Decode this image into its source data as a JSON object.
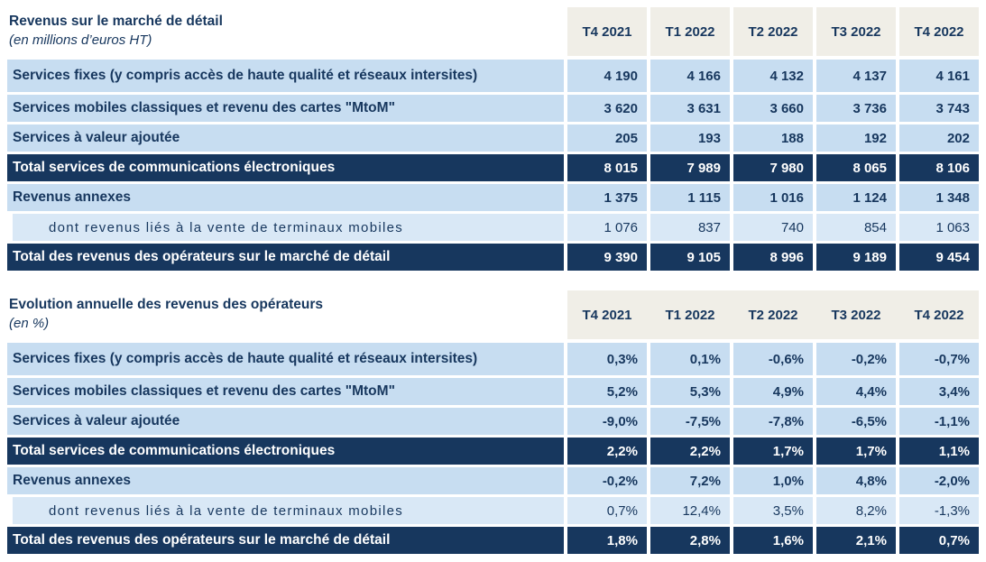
{
  "colors": {
    "navy": "#17375E",
    "row_blue": "#C7DDF1",
    "sub_row_blue": "#D9E8F6",
    "header_beige": "#F0EEE7",
    "total_row_text": "#FFFFFF"
  },
  "chart_data": [
    {
      "type": "table",
      "title": "Revenus sur le marché de détail",
      "subtitle": "(en millions d’euros HT)",
      "header_style": "split",
      "columns": [
        "T4 2021",
        "T1 2022",
        "T2 2022",
        "T3 2022",
        "T4 2022"
      ],
      "rows": [
        {
          "label": "Services fixes (y compris accès de haute qualité et réseaux intersites)",
          "style": "data",
          "values": [
            "4 190",
            "4 166",
            "4 132",
            "4 137",
            "4 161"
          ]
        },
        {
          "label": "Services mobiles classiques et revenu des cartes \"MtoM\"",
          "style": "data",
          "values": [
            "3 620",
            "3 631",
            "3 660",
            "3 736",
            "3 743"
          ]
        },
        {
          "label": "Services à valeur ajoutée",
          "style": "data",
          "values": [
            "205",
            "193",
            "188",
            "192",
            "202"
          ]
        },
        {
          "label": "Total services de communications électroniques",
          "style": "total",
          "values": [
            "8 015",
            "7 989",
            "7 980",
            "8 065",
            "8 106"
          ]
        },
        {
          "label": "Revenus annexes",
          "style": "data",
          "values": [
            "1 375",
            "1 115",
            "1 016",
            "1 124",
            "1 348"
          ]
        },
        {
          "label": "dont revenus liés à la vente de terminaux mobiles",
          "style": "sub",
          "values": [
            "1 076",
            "837",
            "740",
            "854",
            "1 063"
          ]
        },
        {
          "label": "Total des revenus des opérateurs sur le marché de détail",
          "style": "total",
          "values": [
            "9 390",
            "9 105",
            "8 996",
            "9 189",
            "9 454"
          ]
        }
      ]
    },
    {
      "type": "table",
      "title": "Evolution annuelle des revenus des opérateurs",
      "subtitle": "(en %)",
      "header_style": "joined",
      "columns": [
        "T4 2021",
        "T1 2022",
        "T2 2022",
        "T3 2022",
        "T4 2022"
      ],
      "rows": [
        {
          "label": "Services fixes (y compris accès de haute qualité et réseaux intersites)",
          "style": "data",
          "values": [
            "0,3%",
            "0,1%",
            "-0,6%",
            "-0,2%",
            "-0,7%"
          ]
        },
        {
          "label": "Services mobiles classiques et revenu des cartes \"MtoM\"",
          "style": "data",
          "values": [
            "5,2%",
            "5,3%",
            "4,9%",
            "4,4%",
            "3,4%"
          ]
        },
        {
          "label": "Services à valeur ajoutée",
          "style": "data",
          "values": [
            "-9,0%",
            "-7,5%",
            "-7,8%",
            "-6,5%",
            "-1,1%"
          ]
        },
        {
          "label": "Total services de communications électroniques",
          "style": "total",
          "values": [
            "2,2%",
            "2,2%",
            "1,7%",
            "1,7%",
            "1,1%"
          ]
        },
        {
          "label": "Revenus annexes",
          "style": "data",
          "values": [
            "-0,2%",
            "7,2%",
            "1,0%",
            "4,8%",
            "-2,0%"
          ]
        },
        {
          "label": "dont revenus liés à la vente de terminaux mobiles",
          "style": "sub",
          "values": [
            "0,7%",
            "12,4%",
            "3,5%",
            "8,2%",
            "-1,3%"
          ]
        },
        {
          "label": "Total des revenus des opérateurs sur le marché de détail",
          "style": "total",
          "values": [
            "1,8%",
            "2,8%",
            "1,6%",
            "2,1%",
            "0,7%"
          ]
        }
      ]
    }
  ]
}
